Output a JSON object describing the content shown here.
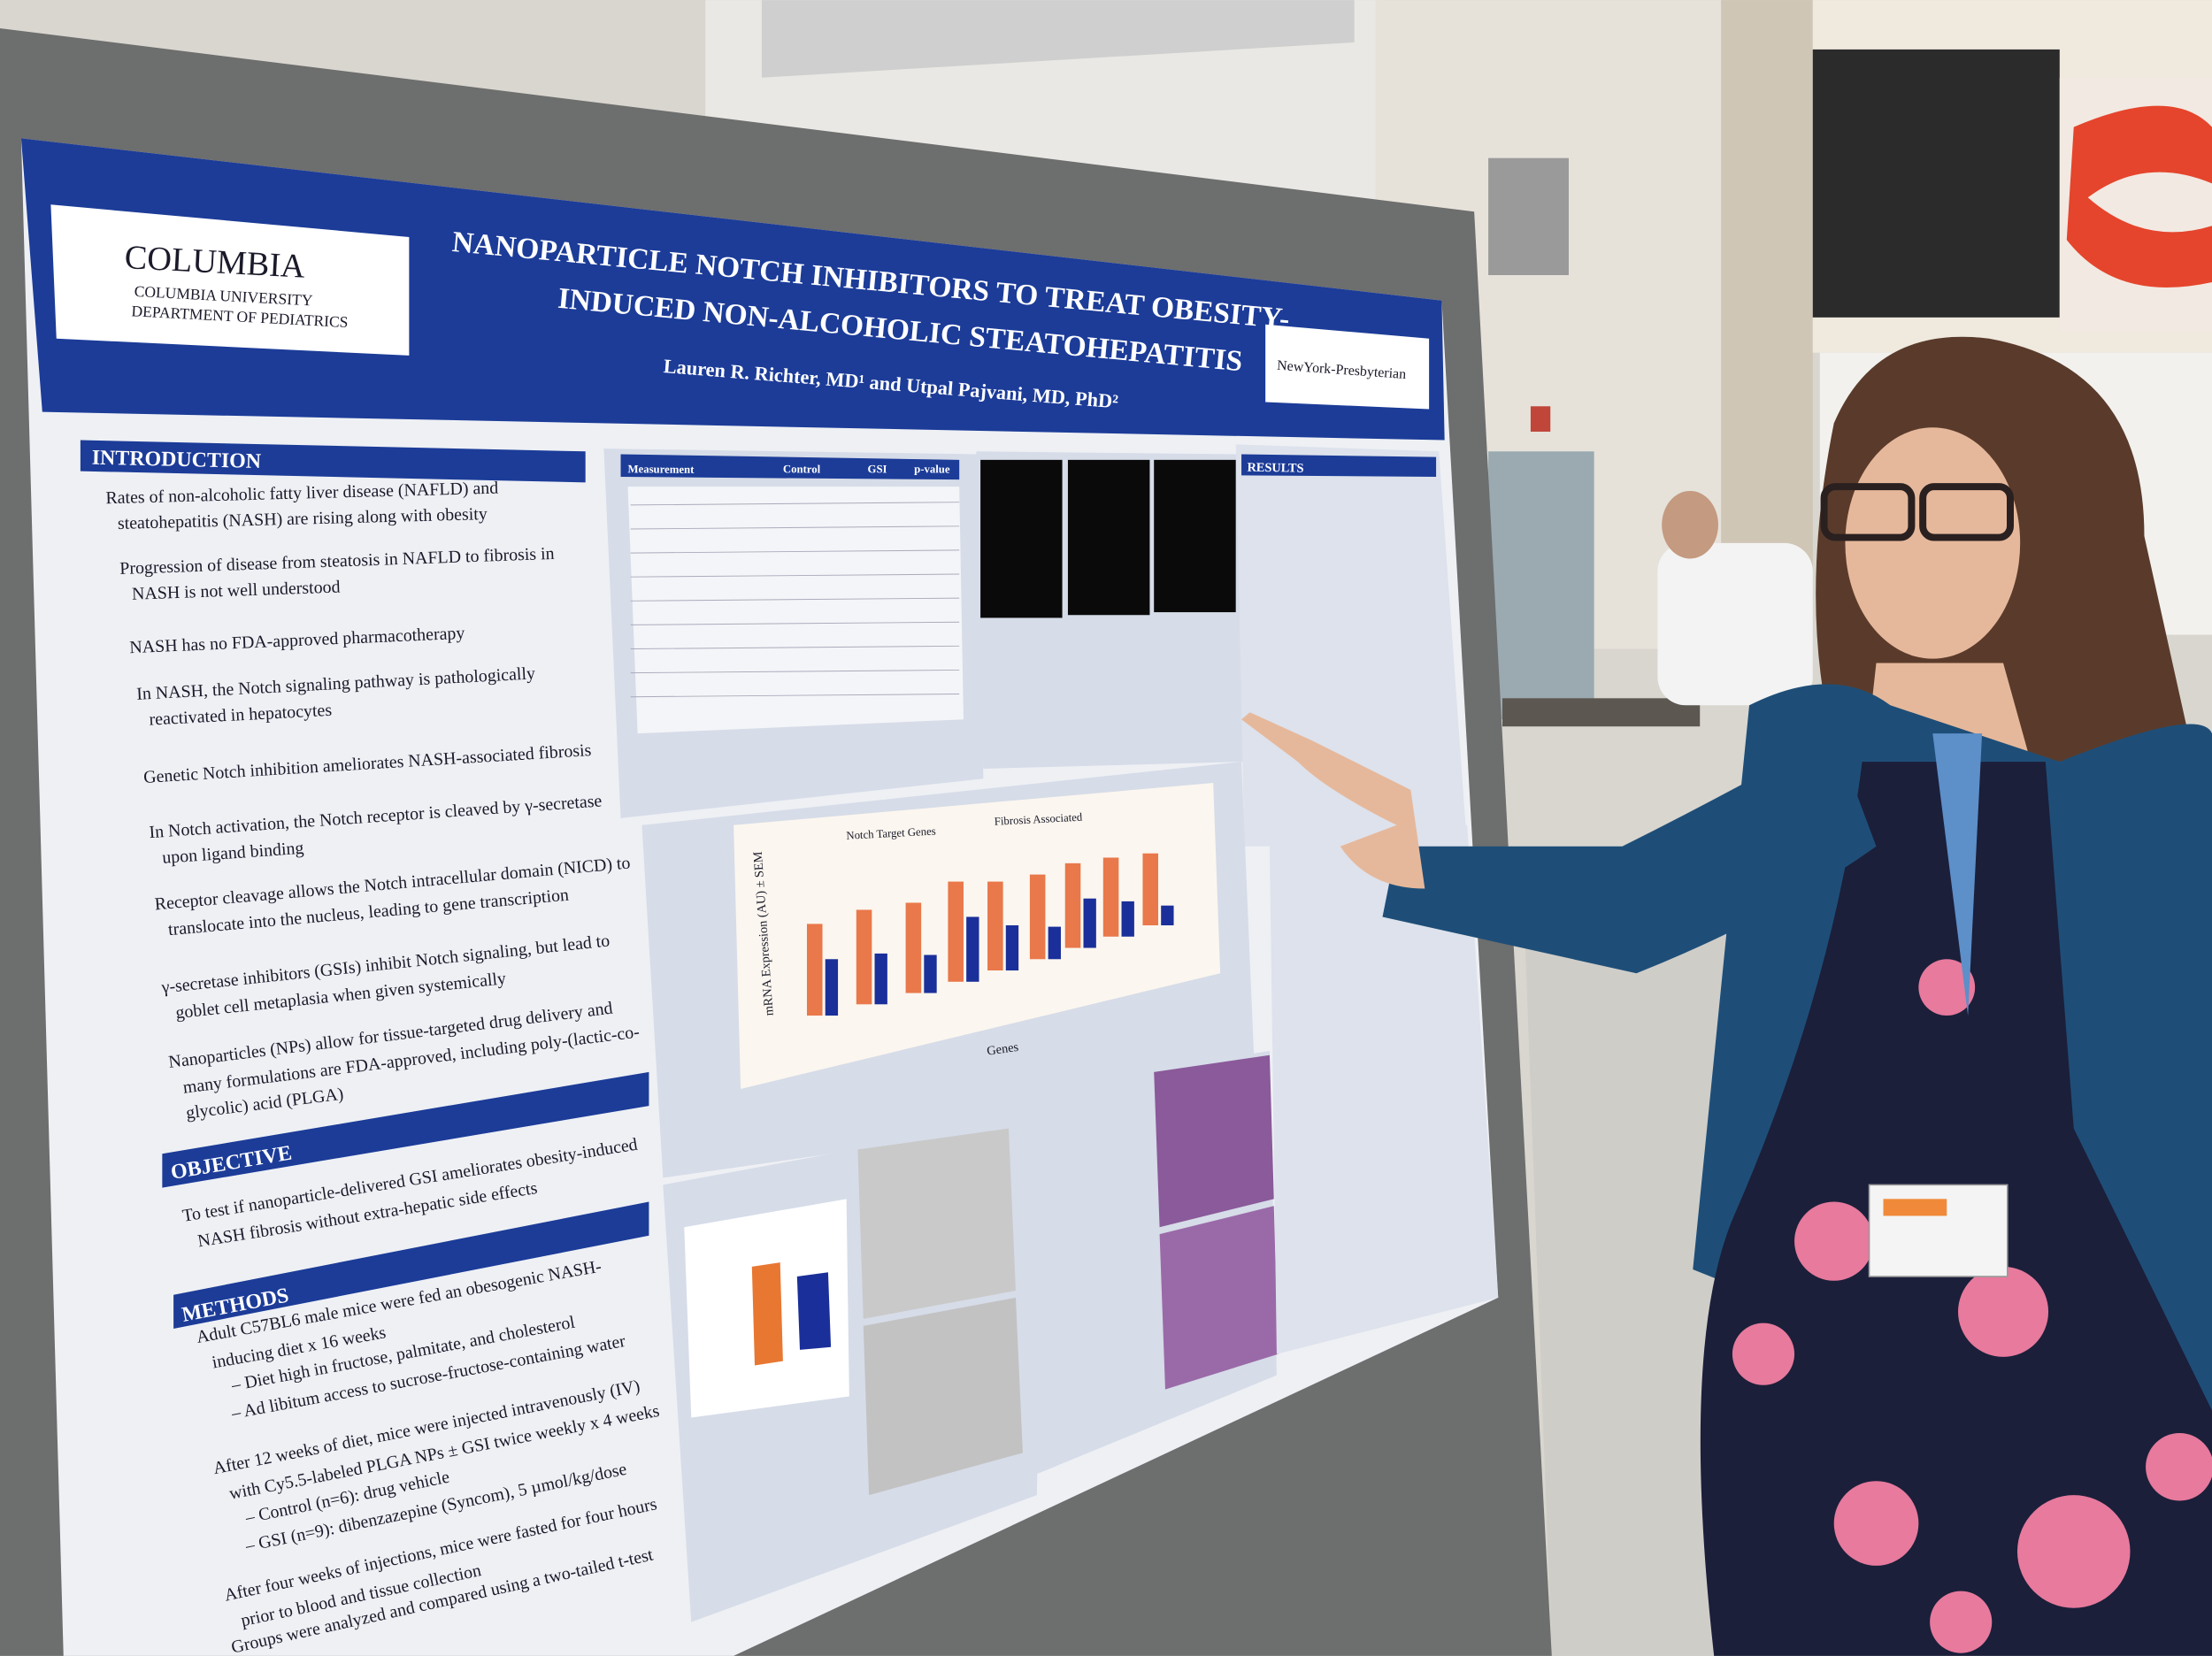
{
  "poster": {
    "header": {
      "logo": "COLUMBIA",
      "logo_sub": [
        "COLUMBIA UNIVERSITY",
        "DEPARTMENT OF PEDIATRICS"
      ],
      "title": [
        "NANOPARTICLE NOTCH INHIBITORS TO TREAT OBESITY-",
        "INDUCED NON-ALCOHOLIC STEATOHEPATITIS"
      ],
      "authors": "Lauren R. Richter, MD¹ and Utpal Pajvani, MD, PhD²",
      "partner": "NewYork-Presbyterian"
    },
    "introduction": {
      "heading": "INTRODUCTION",
      "items": [
        [
          "Rates of non-alcoholic fatty liver disease (NAFLD) and",
          "steatohepatitis (NASH) are rising along with obesity"
        ],
        [
          "Progression of disease from steatosis in NAFLD to fibrosis in",
          "NASH is not well understood"
        ],
        [
          "NASH has no FDA-approved pharmacotherapy"
        ],
        [
          "In NASH, the Notch signaling pathway is pathologically",
          "reactivated in hepatocytes"
        ],
        [
          "Genetic Notch inhibition ameliorates NASH-associated fibrosis"
        ],
        [
          "In Notch activation, the Notch receptor is cleaved by γ-secretase",
          "upon ligand binding"
        ],
        [
          "Receptor cleavage allows the Notch intracellular domain (NICD) to",
          "translocate into the nucleus, leading to gene transcription"
        ],
        [
          "γ-secretase inhibitors (GSIs) inhibit Notch signaling, but lead to",
          "goblet cell metaplasia when given systemically"
        ],
        [
          "Nanoparticles (NPs) allow for tissue-targeted drug delivery and",
          "many formulations are FDA-approved, including poly-(lactic-co-",
          "glycolic) acid (PLGA)"
        ]
      ]
    },
    "objective": {
      "heading": "OBJECTIVE",
      "items": [
        [
          "To test if nanoparticle-delivered GSI ameliorates obesity-induced",
          "NASH fibrosis without extra-hepatic side effects"
        ]
      ]
    },
    "methods": {
      "heading": "METHODS",
      "items": [
        [
          "Adult C57BL6 male mice were fed an obesogenic NASH-",
          "inducing diet x 16 weeks"
        ],
        [
          "– Diet high in fructose, palmitate, and cholesterol"
        ],
        [
          "– Ad libitum access to sucrose-fructose-containing water"
        ],
        [
          "After 12 weeks of diet, mice were injected intravenously (IV)",
          "with Cy5.5-labeled PLGA NPs ± GSI twice weekly x 4 weeks"
        ],
        [
          "– Control (n=6): drug vehicle"
        ],
        [
          "– GSI (n=9): dibenzazepine (Syncom), 5 µmol/kg/dose"
        ],
        [
          "After four weeks of injections, mice were fasted for four hours",
          "prior to blood and tissue collection"
        ],
        [
          "Groups were analyzed and compared using a two-tailed t-test"
        ]
      ]
    },
    "table": {
      "columns": [
        "Measurement",
        "Control",
        "GSI",
        "p-value"
      ]
    },
    "figure": {
      "title_left": "Notch Target Genes",
      "title_right": "Fibrosis Associated",
      "y_label": "mRNA Expression (AU) ± SEM",
      "x_label": "Genes"
    },
    "results_heading": "RESULTS"
  }
}
